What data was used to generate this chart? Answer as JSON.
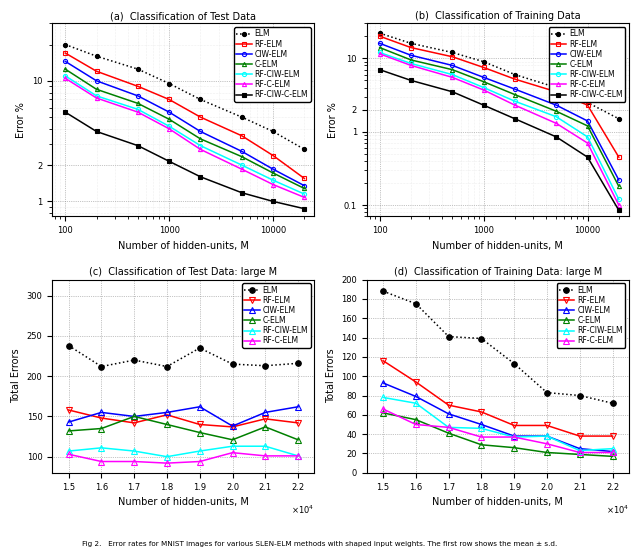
{
  "legend_labels": [
    "ELM",
    "RF-ELM",
    "CIW-ELM",
    "C-ELM",
    "RF-CIW-ELM",
    "RF-C-ELM",
    "RF-CIW-C-ELM"
  ],
  "legend_labels_bottom": [
    "ELM",
    "RF-ELM",
    "CIW-ELM",
    "C-ELM",
    "RF-CIW-ELM",
    "RF-C-ELM"
  ],
  "colors7": [
    "black",
    "red",
    "blue",
    "green",
    "cyan",
    "magenta",
    "black"
  ],
  "colors6": [
    "black",
    "red",
    "blue",
    "green",
    "cyan",
    "magenta"
  ],
  "linestyles7": [
    "dotted",
    "solid",
    "solid",
    "solid",
    "solid",
    "solid",
    "solid"
  ],
  "linestyles6": [
    "dotted",
    "solid",
    "solid",
    "solid",
    "solid",
    "solid"
  ],
  "markers7": [
    "o",
    "s",
    "o",
    "^",
    "o",
    "^",
    "s"
  ],
  "markers6": [
    "o",
    "v",
    "^",
    "^",
    "^",
    "^"
  ],
  "x_log": [
    100,
    200,
    500,
    1000,
    2000,
    5000,
    10000,
    20000
  ],
  "subplot_a_title": "(a)  Classification of Test Data",
  "subplot_b_title": "(b)  Classification of Training Data",
  "subplot_c_title": "(c)  Classification of Test Data: large M",
  "subplot_d_title": "(d)  Classification of Training Data: large M",
  "xlabel_top": "Number of hidden-units, M",
  "xlabel_bottom": "Number of hidden-units, M",
  "ylabel_top": "Error %",
  "ylabel_bottom": "Total Errors",
  "fig_caption": "Fig 2.   Error rates for MNIST images for various SLEN-ELM methods with shaped input weights. The first row shows the mean ± s.d.",
  "a_ELM": [
    20.0,
    16.0,
    12.5,
    9.5,
    7.0,
    5.0,
    3.8,
    2.7
  ],
  "a_RF_ELM": [
    17.0,
    12.0,
    9.0,
    7.0,
    5.0,
    3.5,
    2.4,
    1.55
  ],
  "a_CIW_ELM": [
    14.5,
    10.0,
    7.5,
    5.5,
    3.8,
    2.6,
    1.85,
    1.35
  ],
  "a_C_ELM": [
    12.5,
    8.5,
    6.5,
    4.8,
    3.3,
    2.35,
    1.72,
    1.28
  ],
  "a_RFCIW_ELM": [
    11.0,
    7.5,
    5.8,
    4.2,
    2.9,
    2.0,
    1.5,
    1.15
  ],
  "a_RFC_ELM": [
    10.5,
    7.2,
    5.5,
    4.0,
    2.7,
    1.85,
    1.38,
    1.08
  ],
  "a_RFCIWC_ELM": [
    5.5,
    3.8,
    2.9,
    2.15,
    1.6,
    1.18,
    1.0,
    0.87
  ],
  "b_ELM": [
    22.0,
    16.0,
    12.0,
    9.0,
    6.0,
    4.0,
    2.5,
    1.5
  ],
  "b_RF_ELM": [
    20.0,
    14.0,
    10.5,
    7.5,
    5.2,
    3.5,
    2.3,
    0.45
  ],
  "b_CIW_ELM": [
    16.0,
    11.0,
    8.0,
    5.5,
    3.8,
    2.3,
    1.4,
    0.22
  ],
  "b_C_ELM": [
    14.0,
    9.5,
    7.0,
    4.8,
    3.2,
    1.9,
    1.2,
    0.18
  ],
  "b_RFCIW_ELM": [
    12.0,
    8.5,
    6.0,
    4.0,
    2.6,
    1.6,
    0.85,
    0.12
  ],
  "b_RFC_ELM": [
    11.5,
    8.0,
    5.5,
    3.7,
    2.3,
    1.3,
    0.7,
    0.1
  ],
  "b_RFCIWC_ELM": [
    7.0,
    5.0,
    3.5,
    2.3,
    1.5,
    0.85,
    0.45,
    0.085
  ],
  "x_large": [
    15000,
    16000,
    17000,
    18000,
    19000,
    20000,
    21000,
    22000
  ],
  "c_ELM": [
    238,
    212,
    220,
    212,
    235,
    215,
    213,
    216
  ],
  "c_RF_ELM": [
    158,
    148,
    142,
    152,
    140,
    137,
    147,
    142
  ],
  "c_CIW_ELM": [
    143,
    155,
    150,
    155,
    162,
    138,
    155,
    162
  ],
  "c_C_ELM": [
    132,
    135,
    150,
    140,
    130,
    121,
    137,
    121
  ],
  "c_RFCIW_ELM": [
    107,
    111,
    107,
    100,
    107,
    113,
    113,
    101
  ],
  "c_RFC_ELM": [
    103,
    94,
    94,
    92,
    94,
    105,
    101,
    101
  ],
  "d_ELM": [
    188,
    175,
    141,
    139,
    113,
    83,
    80,
    72
  ],
  "d_RF_ELM": [
    116,
    94,
    70,
    63,
    49,
    49,
    38,
    38
  ],
  "d_CIW_ELM": [
    93,
    79,
    61,
    50,
    38,
    38,
    25,
    22
  ],
  "d_C_ELM": [
    62,
    55,
    41,
    29,
    26,
    21,
    19,
    17
  ],
  "d_RFCIW_ELM": [
    78,
    72,
    47,
    46,
    37,
    38,
    23,
    25
  ],
  "d_RFC_ELM": [
    66,
    50,
    47,
    37,
    37,
    30,
    21,
    21
  ],
  "ylim_a": [
    0.75,
    30
  ],
  "ylim_b": [
    0.07,
    30
  ],
  "ylim_c": [
    80,
    320
  ],
  "ylim_d": [
    0,
    200
  ],
  "yticks_a": [
    1,
    2,
    10
  ],
  "yticks_b": [
    0.1,
    1,
    2,
    10
  ],
  "yticks_c": [
    100,
    150,
    200,
    250,
    300
  ],
  "yticks_d": [
    0,
    20,
    40,
    60,
    80,
    100,
    120,
    140,
    160,
    180,
    200
  ]
}
